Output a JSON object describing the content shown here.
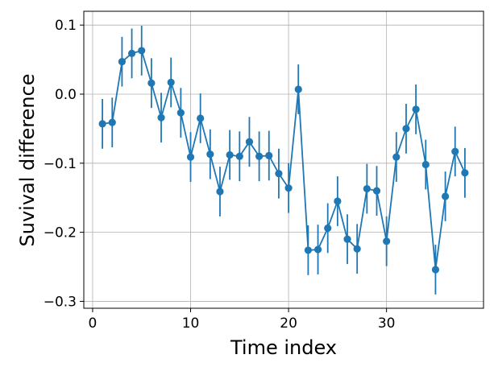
{
  "chart_data": {
    "type": "line",
    "title": "",
    "xlabel": "Time index",
    "ylabel": "Suvival difference",
    "xlim": [
      -0.9,
      39.9
    ],
    "ylim": [
      -0.31,
      0.12
    ],
    "x_ticks": [
      0,
      10,
      20,
      30
    ],
    "x_tick_labels": [
      "0",
      "10",
      "20",
      "30"
    ],
    "y_ticks": [
      -0.3,
      -0.2,
      -0.1,
      0.0,
      0.1
    ],
    "y_tick_labels": [
      "−0.3",
      "−0.2",
      "−0.1",
      "0.0",
      "0.1"
    ],
    "grid": true,
    "color": "#1f77b4",
    "error_bar_halfwidth": 0.036,
    "series": [
      {
        "x": [
          1,
          2,
          3,
          4,
          5,
          6,
          7,
          8,
          9,
          10,
          11,
          12,
          13,
          14,
          15,
          16,
          17,
          18,
          19,
          20,
          21,
          22,
          23,
          24,
          25,
          26,
          27,
          28,
          29,
          30,
          31,
          32,
          33,
          34,
          35,
          36,
          37,
          38
        ],
        "y": [
          -0.043,
          -0.041,
          0.047,
          0.059,
          0.063,
          0.016,
          -0.034,
          0.017,
          -0.027,
          -0.091,
          -0.035,
          -0.087,
          -0.141,
          -0.088,
          -0.09,
          -0.069,
          -0.09,
          -0.089,
          -0.115,
          -0.136,
          0.007,
          -0.226,
          -0.225,
          -0.194,
          -0.155,
          -0.21,
          -0.224,
          -0.137,
          -0.14,
          -0.213,
          -0.091,
          -0.05,
          -0.022,
          -0.102,
          -0.254,
          -0.148,
          -0.083,
          -0.114
        ]
      }
    ]
  }
}
